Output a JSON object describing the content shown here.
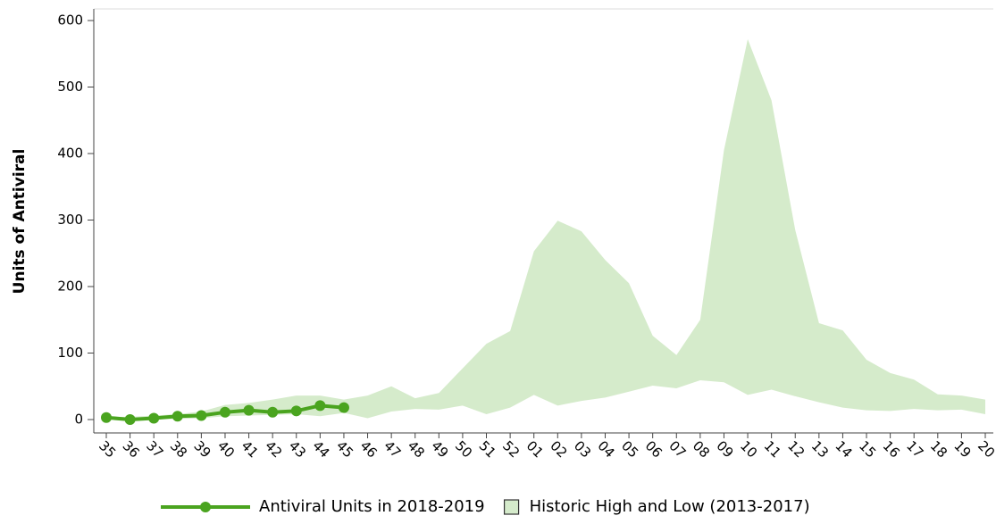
{
  "chart_data": {
    "type": "line",
    "y_label": "Units of Antiviral",
    "categories": [
      "35",
      "36",
      "37",
      "38",
      "39",
      "40",
      "41",
      "42",
      "43",
      "44",
      "45",
      "46",
      "47",
      "48",
      "49",
      "50",
      "51",
      "52",
      "01",
      "02",
      "03",
      "04",
      "05",
      "06",
      "07",
      "08",
      "09",
      "10",
      "11",
      "12",
      "13",
      "14",
      "15",
      "16",
      "17",
      "18",
      "19",
      "20"
    ],
    "series": [
      {
        "name": "Historic High and Low (2013-2017)",
        "color": "#d5ebcb",
        "high": [
          4,
          4,
          6,
          8,
          12,
          22,
          25,
          30,
          36,
          36,
          30,
          36,
          50,
          32,
          40,
          77,
          114,
          133,
          253,
          299,
          283,
          240,
          205,
          126,
          97,
          150,
          405,
          572,
          480,
          285,
          145,
          134,
          90,
          70,
          60,
          38,
          36,
          30
        ],
        "low": [
          0,
          0,
          0,
          1,
          2,
          5,
          6,
          7,
          8,
          5,
          10,
          2,
          12,
          16,
          15,
          21,
          8,
          18,
          37,
          21,
          28,
          33,
          42,
          51,
          47,
          59,
          56,
          37,
          45,
          35,
          26,
          18,
          14,
          13,
          16,
          14,
          15,
          8
        ]
      },
      {
        "name": "Antiviral Units in 2018-2019",
        "color": "#4aa41f",
        "values": [
          3,
          0,
          2,
          5,
          6,
          11,
          14,
          11,
          13,
          21,
          18,
          null,
          null,
          null,
          null,
          null,
          null,
          null,
          null,
          null,
          null,
          null,
          null,
          null,
          null,
          null,
          null,
          null,
          null,
          null,
          null,
          null,
          null,
          null,
          null,
          null,
          null,
          null
        ]
      }
    ],
    "ylim": [
      0,
      600
    ],
    "yticks": [
      0,
      100,
      200,
      300,
      400,
      500,
      600
    ]
  }
}
